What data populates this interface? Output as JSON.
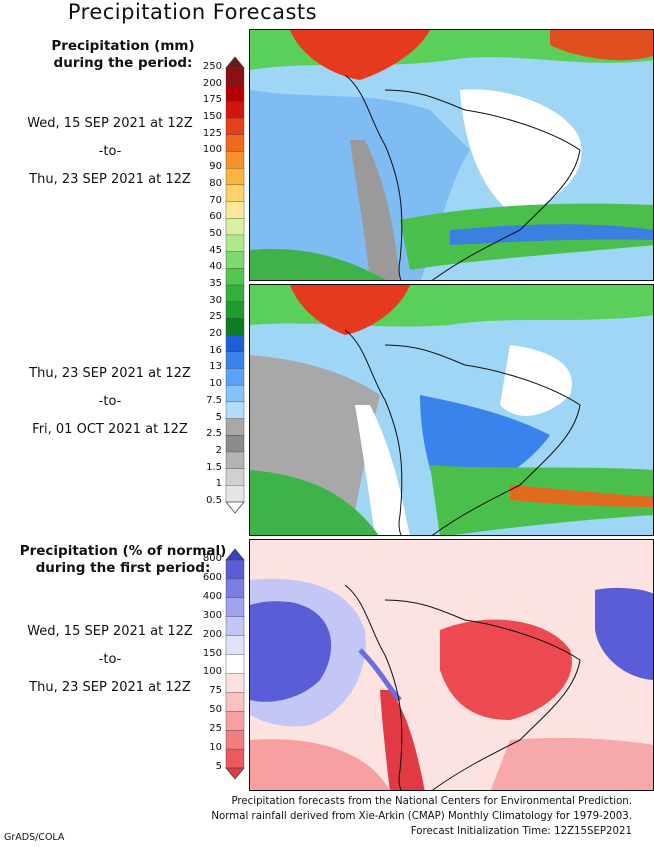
{
  "title": "Precipitation Forecasts",
  "section1": {
    "header_line1": "Precipitation (mm)",
    "header_line2": "during the period:",
    "period1": {
      "start": "Wed, 15 SEP 2021 at 12Z",
      "sep": "-to-",
      "end": "Thu, 23 SEP 2021 at 12Z"
    },
    "period2": {
      "start": "Thu, 23 SEP 2021 at 12Z",
      "sep": "-to-",
      "end": "Fri, 01 OCT 2021 at 12Z"
    },
    "colorbar": {
      "ticks": [
        "250",
        "200",
        "175",
        "150",
        "125",
        "100",
        "90",
        "80",
        "70",
        "60",
        "50",
        "45",
        "40",
        "35",
        "30",
        "25",
        "20",
        "16",
        "13",
        "10",
        "7.5",
        "5",
        "2.5",
        "2",
        "1.5",
        "1",
        "0.5"
      ],
      "colors": [
        "#6a1a1a",
        "#8b1010",
        "#b00000",
        "#d41410",
        "#e6401a",
        "#f06a1e",
        "#f7922a",
        "#fbb43c",
        "#fcd26a",
        "#fde89a",
        "#d8f0a0",
        "#aee88c",
        "#80d870",
        "#55c750",
        "#34b03a",
        "#1f9a2c",
        "#0e7a22",
        "#1e5fd6",
        "#3a82ec",
        "#5aa2f5",
        "#86c2fb",
        "#b4dcff",
        "#a8a8a8",
        "#8c8c8c",
        "#b4b4b4",
        "#d0d0d0",
        "#e6e6e6",
        "#ffffff"
      ]
    }
  },
  "section2": {
    "header_line1": "Precipitation (% of normal)",
    "header_line2": "during the first period:",
    "period": {
      "start": "Wed, 15 SEP 2021 at 12Z",
      "sep": "-to-",
      "end": "Thu, 23 SEP 2021 at 12Z"
    },
    "colorbar": {
      "ticks": [
        "800",
        "600",
        "400",
        "300",
        "200",
        "150",
        "100",
        "75",
        "50",
        "25",
        "10",
        "5"
      ],
      "colors": [
        "#3b3fc4",
        "#5a5ed6",
        "#7a7ee0",
        "#a0a4ee",
        "#c4c6f6",
        "#e2e3fb",
        "#ffffff",
        "#fde0e0",
        "#fbc0c0",
        "#f7a0a2",
        "#f27c80",
        "#ec5a60",
        "#e23a44"
      ]
    }
  },
  "footer": {
    "line1": "Precipitation forecasts from the National Centers for Environmental Prediction.",
    "line2": "Normal rainfall derived from Xie-Arkin (CMAP) Monthly Climatology for 1979-2003.",
    "line3": "Forecast Initialization Time: 12Z15SEP2021"
  },
  "credit": "GrADS/COLA"
}
